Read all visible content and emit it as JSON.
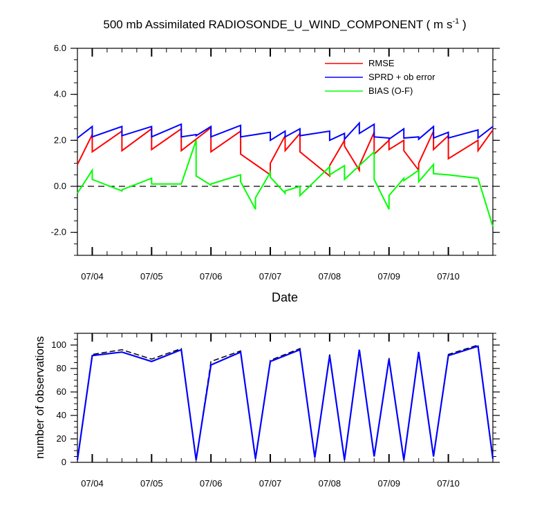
{
  "title": {
    "prefix": "500 mb Assimilated RADIOSONDE_U_WIND_COMPONENT ( m s",
    "superscript": "-1",
    "suffix": " )"
  },
  "colors": {
    "rmse": "#ff0000",
    "sprd": "#0000ff",
    "bias": "#00ff00",
    "nobs_used": "#0000ff",
    "nobs_total": "#000000"
  },
  "chart_data": [
    {
      "type": "line",
      "xlabel": "Date",
      "x_ticks": [
        "07/04",
        "07/05",
        "07/06",
        "07/07",
        "07/08",
        "07/09",
        "07/10"
      ],
      "ylim": [
        -3.0,
        6.0
      ],
      "y_ticks": [
        "6.0",
        "4.0",
        "2.0",
        "0.0",
        "-2.0"
      ],
      "zero_line": "dashed",
      "legend": {
        "position": "top-right",
        "entries": [
          "RMSE",
          "SPRD + ob error",
          "BIAS (O-F)"
        ]
      },
      "series": [
        {
          "name": "RMSE",
          "color_key": "rmse",
          "x": [
            0,
            0.25,
            0.25,
            0.75,
            0.75,
            1.25,
            1.25,
            1.75,
            1.75,
            2.25,
            2.25,
            2.75,
            2.75,
            3.25,
            3.25,
            3.5,
            3.5,
            3.75,
            3.75,
            4.25,
            4.25,
            4.5,
            4.5,
            4.75,
            4.75,
            5.0,
            5.0,
            5.25,
            5.25,
            5.5,
            5.5,
            5.75,
            5.75,
            6.0,
            6.0,
            6.25,
            6.25,
            6.75,
            6.75,
            7.0
          ],
          "y": [
            0.95,
            2.25,
            1.5,
            2.4,
            1.55,
            2.5,
            1.6,
            2.5,
            1.55,
            2.55,
            1.5,
            2.4,
            1.4,
            0.5,
            1.0,
            2.2,
            1.55,
            2.3,
            1.5,
            0.45,
            0.9,
            2.0,
            1.75,
            0.7,
            0.9,
            2.35,
            1.4,
            2.0,
            1.6,
            2.0,
            1.55,
            0.7,
            1.0,
            2.4,
            1.6,
            2.2,
            1.2,
            2.0,
            1.55,
            2.45
          ]
        },
        {
          "name": "SPRD + ob error",
          "color_key": "sprd",
          "x": [
            0,
            0.25,
            0.25,
            0.75,
            0.75,
            1.25,
            1.25,
            1.75,
            1.75,
            2.0,
            2.0,
            2.25,
            2.25,
            2.75,
            2.75,
            3.25,
            3.25,
            3.5,
            3.5,
            3.75,
            3.75,
            4.25,
            4.25,
            4.5,
            4.5,
            4.75,
            4.75,
            5.0,
            5.0,
            5.25,
            5.25,
            5.5,
            5.5,
            5.75,
            5.75,
            6.0,
            6.0,
            6.25,
            6.25,
            6.75,
            6.75,
            7.0
          ],
          "y": [
            2.1,
            2.6,
            2.15,
            2.6,
            2.2,
            2.6,
            2.15,
            2.7,
            2.15,
            2.25,
            2.2,
            2.6,
            2.15,
            2.65,
            2.15,
            2.35,
            2.0,
            2.4,
            2.15,
            2.5,
            2.2,
            2.4,
            2.0,
            2.3,
            2.05,
            2.75,
            2.3,
            2.7,
            2.15,
            2.1,
            2.05,
            2.5,
            2.1,
            2.15,
            2.05,
            2.6,
            2.1,
            2.35,
            2.1,
            2.45,
            2.1,
            2.6
          ]
        },
        {
          "name": "BIAS (O-F)",
          "color_key": "bias",
          "x": [
            0,
            0.25,
            0.25,
            0.75,
            0.75,
            1.25,
            1.25,
            1.75,
            1.75,
            2.0,
            2.0,
            2.25,
            2.25,
            2.75,
            2.75,
            3.0,
            3.0,
            3.25,
            3.25,
            3.5,
            3.5,
            3.75,
            3.75,
            4.25,
            4.25,
            4.5,
            4.5,
            5.0,
            5.0,
            5.25,
            5.25,
            5.5,
            5.5,
            5.75,
            5.75,
            6.0,
            6.0,
            6.25,
            6.25,
            6.75,
            6.75,
            7.0
          ],
          "y": [
            -0.3,
            0.7,
            0.3,
            -0.2,
            -0.15,
            0.35,
            0.1,
            0.1,
            0.1,
            2.0,
            0.45,
            0.05,
            0.1,
            0.5,
            0.2,
            -1.0,
            -0.5,
            0.6,
            0.4,
            -0.3,
            -0.2,
            0.0,
            -0.4,
            0.85,
            0.5,
            0.9,
            0.3,
            1.5,
            0.3,
            -1.0,
            -0.4,
            0.35,
            0.25,
            0.7,
            0.2,
            0.95,
            0.55,
            0.5,
            0.5,
            0.35,
            0.35,
            -1.75
          ]
        }
      ]
    },
    {
      "type": "line",
      "ylabel": "number of observations",
      "x_ticks": [
        "07/04",
        "07/05",
        "07/06",
        "07/07",
        "07/08",
        "07/09",
        "07/10"
      ],
      "ylim": [
        0,
        110
      ],
      "y_ticks": [
        "100",
        "80",
        "60",
        "40",
        "20",
        "0"
      ],
      "series": [
        {
          "color_key": "nobs_total",
          "style": "dashed",
          "x": [
            -0.25,
            0.25,
            0.75,
            1.25,
            1.75,
            2.0,
            2.25,
            2.75,
            3.0,
            3.25,
            3.75,
            4.0,
            4.25,
            4.5,
            4.75,
            5.0,
            5.25,
            5.5,
            5.75,
            6.0,
            6.25,
            6.75,
            7.0
          ],
          "y": [
            2,
            92,
            96,
            88,
            97,
            2,
            86,
            95,
            3,
            87,
            97,
            4,
            92,
            2,
            97,
            5,
            89,
            2,
            95,
            5,
            92,
            100,
            3
          ]
        },
        {
          "color_key": "nobs_used",
          "style": "solid",
          "x": [
            -0.25,
            0.25,
            0.75,
            1.25,
            1.75,
            2.0,
            2.25,
            2.75,
            3.0,
            3.25,
            3.75,
            4.0,
            4.25,
            4.5,
            4.75,
            5.0,
            5.25,
            5.5,
            5.75,
            6.0,
            6.25,
            6.75,
            7.0
          ],
          "y": [
            2,
            91,
            94,
            86,
            96,
            2,
            83,
            94,
            3,
            86,
            96,
            4,
            91,
            2,
            96,
            5,
            88,
            2,
            94,
            5,
            91,
            99,
            3
          ]
        }
      ]
    }
  ]
}
